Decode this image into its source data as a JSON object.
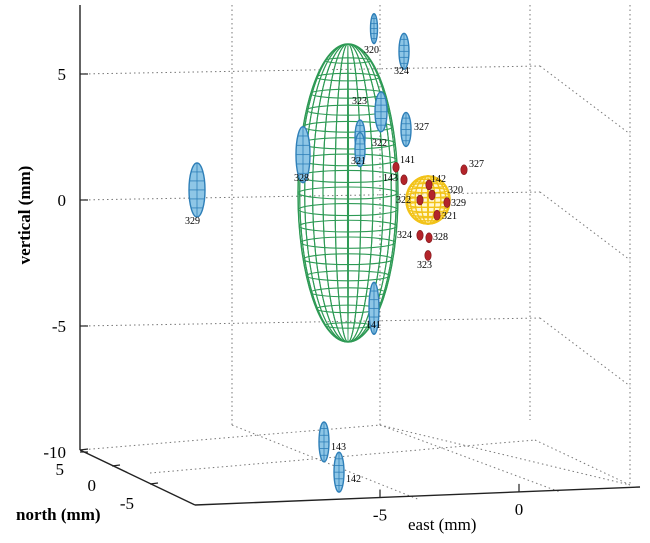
{
  "chart_data": {
    "type": "scatter",
    "subtype": "3d-ellipsoid-scatter",
    "xlabel": "east (mm)",
    "ylabel": "north (mm)",
    "zlabel": "vertical (mm)",
    "x_ticks": [
      "-5",
      "0"
    ],
    "y_ticks": [
      "5",
      "0",
      "-5"
    ],
    "z_ticks": [
      "5",
      "0",
      "-5",
      "-10"
    ],
    "zlim": [
      -10,
      7
    ],
    "grid": true,
    "colors": {
      "large_ellipsoid": "#2e9a55",
      "small_sphere": "#f2c319",
      "blue_ellipsoids": "#2e7fb8",
      "red_points": "#b3242a"
    },
    "blue_markers": [
      {
        "label": "320",
        "z": 6.8
      },
      {
        "label": "324",
        "z": 5.9
      },
      {
        "label": "323",
        "z": 3.5
      },
      {
        "label": "327",
        "z": 2.8
      },
      {
        "label": "322",
        "z": 2.5
      },
      {
        "label": "321",
        "z": 2.0
      },
      {
        "label": "328",
        "z": 1.8
      },
      {
        "label": "329",
        "z": 0.4
      },
      {
        "label": "141",
        "z": -4.3
      },
      {
        "label": "143",
        "z": -9.6
      },
      {
        "label": "142",
        "z": -10.8
      }
    ],
    "red_markers": [
      {
        "label": "327",
        "z": 1.2
      },
      {
        "label": "141",
        "z": 1.3
      },
      {
        "label": "143",
        "z": 0.8
      },
      {
        "label": "142",
        "z": 0.6
      },
      {
        "label": "320",
        "z": 0.2
      },
      {
        "label": "322",
        "z": 0.0
      },
      {
        "label": "329",
        "z": -0.1
      },
      {
        "label": "321",
        "z": -0.6
      },
      {
        "label": "324",
        "z": -1.4
      },
      {
        "label": "328",
        "z": -1.5
      },
      {
        "label": "323",
        "z": -2.2
      }
    ]
  }
}
